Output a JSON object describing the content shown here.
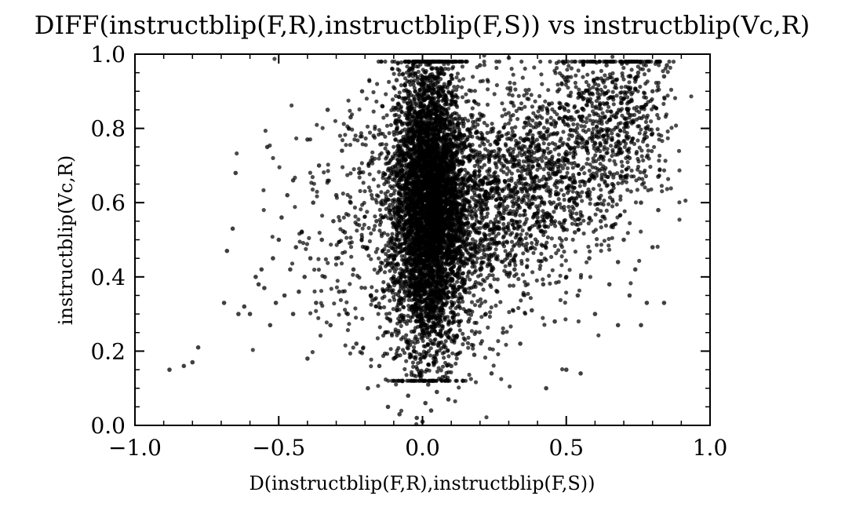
{
  "chart_data": {
    "type": "scatter",
    "title": "DIFF(instructblip(F,R),instructblip(F,S)) vs instructblip(Vc,R)",
    "xlabel": "D(instructblip(F,R),instructblip(F,S))",
    "ylabel": "instructblip(Vc,R)",
    "xlim": [
      -1.0,
      1.0
    ],
    "ylim": [
      0.0,
      1.0
    ],
    "x_ticks": [
      {
        "value": -1.0,
        "label": "−1.0"
      },
      {
        "value": -0.5,
        "label": "−0.5"
      },
      {
        "value": 0.0,
        "label": "0.0"
      },
      {
        "value": 0.5,
        "label": "0.5"
      },
      {
        "value": 1.0,
        "label": "1.0"
      }
    ],
    "y_ticks": [
      {
        "value": 0.0,
        "label": "0.0"
      },
      {
        "value": 0.2,
        "label": "0.2"
      },
      {
        "value": 0.4,
        "label": "0.4"
      },
      {
        "value": 0.6,
        "label": "0.6"
      },
      {
        "value": 0.8,
        "label": "0.8"
      },
      {
        "value": 1.0,
        "label": "1.0"
      }
    ],
    "grid": false,
    "marker_color": "#000000",
    "series": [
      {
        "points": [
          [
            -0.88,
            0.15
          ],
          [
            -0.83,
            0.16
          ],
          [
            -0.8,
            0.17
          ],
          [
            -0.78,
            0.21
          ],
          [
            -0.69,
            0.33
          ],
          [
            -0.68,
            0.47
          ],
          [
            -0.66,
            0.53
          ],
          [
            -0.65,
            0.68
          ],
          [
            -0.64,
            0.3
          ],
          [
            -0.62,
            0.32
          ],
          [
            -0.6,
            0.3
          ],
          [
            -0.58,
            0.4
          ],
          [
            -0.57,
            0.38
          ],
          [
            -0.56,
            0.42
          ],
          [
            -0.55,
            0.37
          ],
          [
            -0.54,
            0.75
          ],
          [
            -0.53,
            0.27
          ],
          [
            -0.52,
            0.45
          ],
          [
            -0.51,
            0.33
          ],
          [
            -0.5,
            0.5
          ],
          [
            -0.49,
            0.56
          ],
          [
            -0.48,
            0.35
          ],
          [
            -0.47,
            0.62
          ],
          [
            -0.46,
            0.42
          ],
          [
            -0.45,
            0.3
          ],
          [
            -0.45,
            0.66
          ],
          [
            -0.44,
            0.48
          ],
          [
            -0.43,
            0.36
          ],
          [
            -0.42,
            0.52
          ],
          [
            -0.41,
            0.4
          ],
          [
            -0.4,
            0.77
          ],
          [
            -0.4,
            0.18
          ],
          [
            -0.39,
            0.45
          ],
          [
            -0.38,
            0.6
          ],
          [
            -0.37,
            0.33
          ],
          [
            -0.36,
            0.7
          ],
          [
            -0.35,
            0.5
          ],
          [
            -0.34,
            0.4
          ],
          [
            -0.33,
            0.85
          ],
          [
            -0.32,
            0.27
          ],
          [
            -0.31,
            0.55
          ],
          [
            -0.3,
            0.62
          ],
          [
            -0.3,
            0.45
          ],
          [
            -0.29,
            0.36
          ],
          [
            -0.28,
            0.74
          ],
          [
            -0.27,
            0.52
          ],
          [
            -0.26,
            0.3
          ],
          [
            -0.25,
            0.83
          ],
          [
            -0.25,
            0.6
          ],
          [
            -0.24,
            0.42
          ],
          [
            -0.23,
            0.22
          ],
          [
            -0.22,
            0.68
          ],
          [
            -0.21,
            0.9
          ],
          [
            -0.2,
            0.48
          ],
          [
            -0.19,
            0.1
          ],
          [
            -0.18,
            0.35
          ],
          [
            -0.17,
            0.78
          ],
          [
            -0.16,
            0.55
          ],
          [
            -0.15,
            0.16
          ],
          [
            -0.14,
            0.86
          ],
          [
            -0.13,
            0.25
          ],
          [
            -0.12,
            0.05
          ],
          [
            -0.11,
            0.62
          ],
          [
            -0.1,
            0.18
          ],
          [
            -0.09,
            0.93
          ],
          [
            -0.08,
            0.03
          ],
          [
            -0.07,
            0.12
          ],
          [
            -0.06,
            0.4
          ],
          [
            -0.05,
            0.08
          ],
          [
            -0.04,
            0.96
          ],
          [
            -0.03,
            0.2
          ],
          [
            -0.02,
            0.02
          ],
          [
            -0.01,
            0.14
          ],
          [
            0.0,
            0.01
          ],
          [
            0.01,
            0.06
          ],
          [
            0.02,
            0.11
          ],
          [
            0.03,
            0.04
          ],
          [
            0.04,
            0.17
          ],
          [
            0.05,
            0.09
          ],
          [
            0.06,
            0.98
          ],
          [
            0.07,
            0.13
          ],
          [
            0.08,
            0.21
          ],
          [
            0.09,
            0.07
          ],
          [
            0.1,
            0.16
          ],
          [
            0.12,
            0.24
          ],
          [
            0.14,
            0.12
          ],
          [
            0.16,
            0.28
          ],
          [
            0.18,
            0.19
          ],
          [
            0.2,
            0.97
          ],
          [
            0.22,
            0.3
          ],
          [
            0.24,
            0.14
          ],
          [
            0.26,
            0.36
          ],
          [
            0.28,
            0.25
          ],
          [
            0.3,
            0.99
          ],
          [
            0.32,
            0.42
          ],
          [
            0.34,
            0.22
          ],
          [
            0.36,
            0.48
          ],
          [
            0.38,
            0.31
          ],
          [
            0.4,
            0.56
          ],
          [
            0.42,
            0.38
          ],
          [
            0.43,
            0.1
          ],
          [
            0.44,
            0.63
          ],
          [
            0.46,
            0.28
          ],
          [
            0.48,
            0.7
          ],
          [
            0.5,
            0.4
          ],
          [
            0.5,
            0.15
          ],
          [
            0.52,
            0.78
          ],
          [
            0.54,
            0.35
          ],
          [
            0.55,
            0.14
          ],
          [
            0.56,
            0.85
          ],
          [
            0.58,
            0.45
          ],
          [
            0.6,
            0.92
          ],
          [
            0.6,
            0.3
          ],
          [
            0.62,
            0.55
          ],
          [
            0.64,
            0.97
          ],
          [
            0.65,
            0.38
          ],
          [
            0.66,
            0.65
          ],
          [
            0.68,
            0.27
          ],
          [
            0.7,
            0.88
          ],
          [
            0.7,
            0.5
          ],
          [
            0.72,
            0.72
          ],
          [
            0.74,
            0.42
          ],
          [
            0.75,
            0.95
          ],
          [
            0.76,
            0.6
          ],
          [
            0.78,
            0.33
          ],
          [
            0.78,
            0.8
          ],
          [
            0.8,
            0.48
          ],
          [
            0.8,
            0.9
          ],
          [
            0.82,
            0.67
          ],
          [
            0.82,
            0.58
          ],
          [
            0.84,
            0.33
          ],
          [
            0.84,
            0.94
          ],
          [
            0.85,
            0.97
          ],
          [
            0.76,
            0.27
          ],
          [
            0.72,
            0.35
          ],
          [
            0.68,
            0.44
          ],
          [
            0.63,
            0.78
          ],
          [
            0.58,
            0.62
          ],
          [
            0.53,
            0.52
          ],
          [
            0.47,
            0.9
          ]
        ]
      }
    ]
  }
}
